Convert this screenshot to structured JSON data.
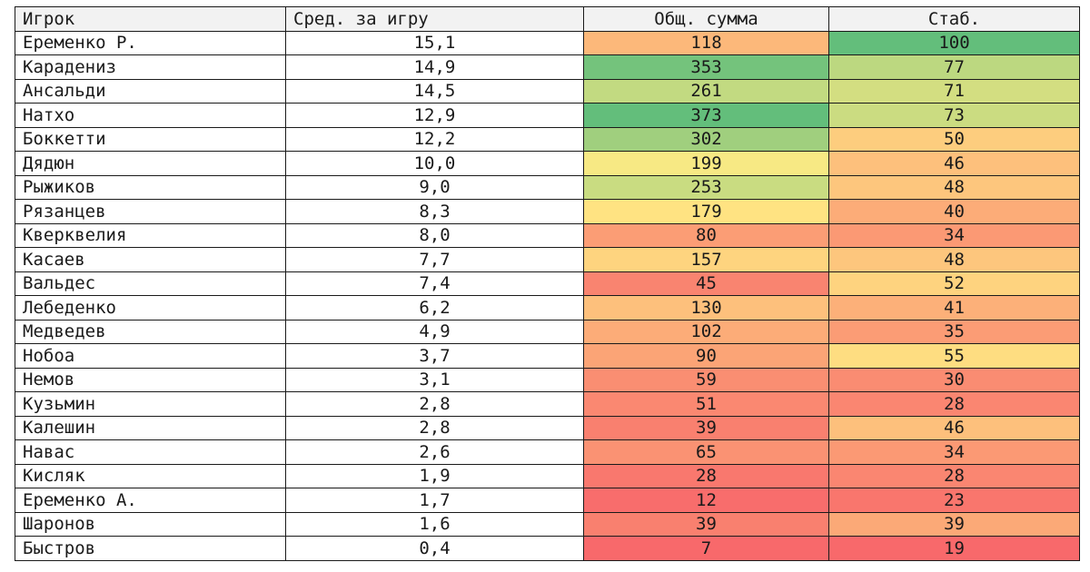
{
  "chart_data": {
    "type": "table",
    "columns": [
      "Игрок",
      "Сред. за игру",
      "Общ. сумма",
      "Стаб."
    ],
    "rows": [
      {
        "player": "Еременко Р.",
        "avg": "15,1",
        "total": 118,
        "stab": 100
      },
      {
        "player": "Карадениз",
        "avg": "14,9",
        "total": 353,
        "stab": 77
      },
      {
        "player": "Ансальди",
        "avg": "14,5",
        "total": 261,
        "stab": 71
      },
      {
        "player": "Натхо",
        "avg": "12,9",
        "total": 373,
        "stab": 73
      },
      {
        "player": "Боккетти",
        "avg": "12,2",
        "total": 302,
        "stab": 50
      },
      {
        "player": "Дядюн",
        "avg": "10,0",
        "total": 199,
        "stab": 46
      },
      {
        "player": "Рыжиков",
        "avg": "9,0",
        "total": 253,
        "stab": 48
      },
      {
        "player": "Рязанцев",
        "avg": "8,3",
        "total": 179,
        "stab": 40
      },
      {
        "player": "Кверквелия",
        "avg": "8,0",
        "total": 80,
        "stab": 34
      },
      {
        "player": "Касаев",
        "avg": "7,7",
        "total": 157,
        "stab": 48
      },
      {
        "player": "Вальдес",
        "avg": "7,4",
        "total": 45,
        "stab": 52
      },
      {
        "player": "Лебеденко",
        "avg": "6,2",
        "total": 130,
        "stab": 41
      },
      {
        "player": "Медведев",
        "avg": "4,9",
        "total": 102,
        "stab": 35
      },
      {
        "player": "Нобоа",
        "avg": "3,7",
        "total": 90,
        "stab": 55
      },
      {
        "player": "Немов",
        "avg": "3,1",
        "total": 59,
        "stab": 30
      },
      {
        "player": "Кузьмин",
        "avg": "2,8",
        "total": 51,
        "stab": 28
      },
      {
        "player": "Калешин",
        "avg": "2,8",
        "total": 39,
        "stab": 46
      },
      {
        "player": "Навас",
        "avg": "2,6",
        "total": 65,
        "stab": 34
      },
      {
        "player": "Кисляк",
        "avg": "1,9",
        "total": 28,
        "stab": 28
      },
      {
        "player": "Еременко А.",
        "avg": "1,7",
        "total": 12,
        "stab": 23
      },
      {
        "player": "Шаронов",
        "avg": "1,6",
        "total": 39,
        "stab": 39
      },
      {
        "player": "Быстров",
        "avg": "0,4",
        "total": 7,
        "stab": 19
      }
    ],
    "color_scale": {
      "low": "#f8696b",
      "mid": "#ffeb84",
      "high": "#63be7b"
    }
  }
}
